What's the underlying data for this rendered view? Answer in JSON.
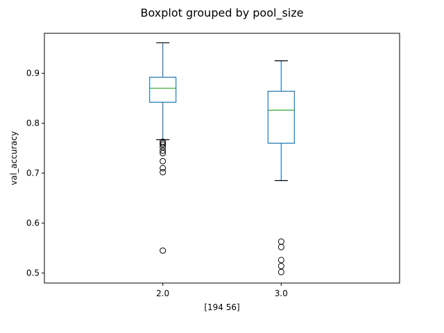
{
  "chart_data": {
    "type": "boxplot",
    "title": "Boxplot grouped by pool_size",
    "xlabel": "[194  56]",
    "ylabel": "val_accuracy",
    "ylim": [
      0.48,
      0.98
    ],
    "yticks": [
      0.5,
      0.6,
      0.7,
      0.8,
      0.9
    ],
    "ytick_labels": [
      "0.5",
      "0.6",
      "0.7",
      "0.8",
      "0.9"
    ],
    "grid": false,
    "legend": "none",
    "categories": [
      "2.0",
      "3.0"
    ],
    "boxes": [
      {
        "category": "2.0",
        "whisker_low": 0.767,
        "q1": 0.842,
        "median": 0.87,
        "q3": 0.892,
        "whisker_high": 0.961,
        "outliers": [
          0.763,
          0.76,
          0.757,
          0.752,
          0.745,
          0.74,
          0.724,
          0.71,
          0.702,
          0.545
        ]
      },
      {
        "category": "3.0",
        "whisker_low": 0.685,
        "q1": 0.76,
        "median": 0.826,
        "q3": 0.864,
        "whisker_high": 0.925,
        "outliers": [
          0.563,
          0.552,
          0.526,
          0.514,
          0.502
        ]
      }
    ],
    "colors": {
      "box": "#1f77b4",
      "median": "#2ca02c",
      "whisker": "#1f77b4",
      "cap": "#000000",
      "outlier": "#000000"
    }
  }
}
